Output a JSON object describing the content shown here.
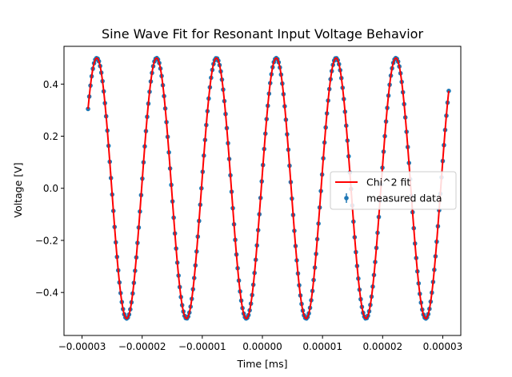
{
  "chart_data": {
    "type": "scatter",
    "title": "Sine Wave Fit for Resonant Input Voltage Behavior",
    "xlabel": "Time [ms]",
    "ylabel": "Voltage [V]",
    "xlim": [
      -3.3e-05,
      3.3e-05
    ],
    "ylim": [
      -0.565,
      0.545
    ],
    "x_ticks": [
      -3e-05,
      -2e-05,
      -1e-05,
      0.0,
      1e-05,
      2e-05,
      3e-05
    ],
    "x_tick_labels": [
      "−0.00003",
      "−0.00002",
      "−0.00001",
      "0.00000",
      "0.00001",
      "0.00002",
      "0.00003"
    ],
    "y_ticks": [
      -0.4,
      -0.2,
      0.0,
      0.2,
      0.4
    ],
    "y_tick_labels": [
      "−0.4",
      "−0.2",
      "0.0",
      "0.2",
      "0.4"
    ],
    "grid": false,
    "legend_position": "center-right",
    "series": [
      {
        "name": "Chi^2 fit",
        "kind": "line",
        "color": "#ff0000",
        "x_start": -2.9e-05,
        "x_end": 3.1e-05,
        "amplitude": 0.5,
        "period": 9.95e-06,
        "peak_x": 2.3e-06,
        "offset": 0.0
      },
      {
        "name": "measured data",
        "kind": "points_with_errorbars",
        "color": "#1f77b4",
        "x_start": -2.9e-05,
        "x_end": 3.1e-05,
        "n_points": 300,
        "error": 0.003
      }
    ]
  }
}
